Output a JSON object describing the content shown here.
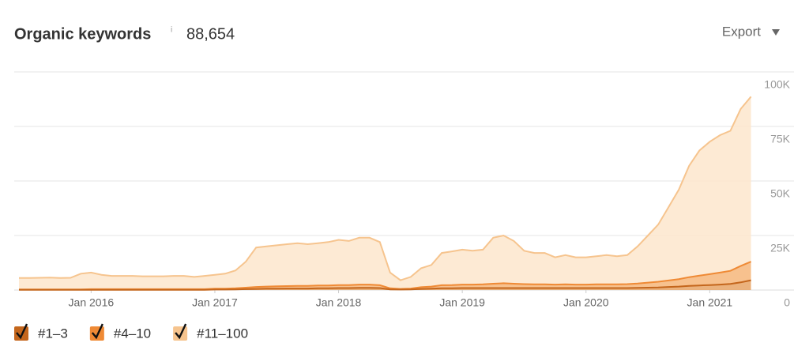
{
  "header": {
    "title": "Organic keywords",
    "info": "i",
    "total": "88,654",
    "export": "Export"
  },
  "chart_data": {
    "type": "area",
    "stacked": true,
    "x": [
      "2015-06",
      "2015-07",
      "2015-08",
      "2015-09",
      "2015-10",
      "2015-11",
      "2015-12",
      "2016-01",
      "2016-02",
      "2016-03",
      "2016-04",
      "2016-05",
      "2016-06",
      "2016-07",
      "2016-08",
      "2016-09",
      "2016-10",
      "2016-11",
      "2016-12",
      "2017-01",
      "2017-02",
      "2017-03",
      "2017-04",
      "2017-05",
      "2017-06",
      "2017-07",
      "2017-08",
      "2017-09",
      "2017-10",
      "2017-11",
      "2017-12",
      "2018-01",
      "2018-02",
      "2018-03",
      "2018-04",
      "2018-05",
      "2018-06",
      "2018-07",
      "2018-08",
      "2018-09",
      "2018-10",
      "2018-11",
      "2018-12",
      "2019-01",
      "2019-02",
      "2019-03",
      "2019-04",
      "2019-05",
      "2019-06",
      "2019-07",
      "2019-08",
      "2019-09",
      "2019-10",
      "2019-11",
      "2019-12",
      "2020-01",
      "2020-02",
      "2020-03",
      "2020-04",
      "2020-05",
      "2020-06",
      "2020-07",
      "2020-08",
      "2020-09",
      "2020-10",
      "2020-11",
      "2020-12",
      "2021-01",
      "2021-02",
      "2021-03",
      "2021-04",
      "2021-05"
    ],
    "series": [
      {
        "name": "#1–3",
        "color": "#c4661c",
        "fill": "#e8a566",
        "values": [
          100,
          100,
          100,
          100,
          100,
          100,
          100,
          100,
          100,
          100,
          100,
          100,
          100,
          100,
          100,
          100,
          100,
          100,
          100,
          200,
          200,
          300,
          400,
          500,
          600,
          600,
          700,
          700,
          700,
          800,
          800,
          900,
          900,
          1000,
          1000,
          900,
          300,
          200,
          300,
          500,
          600,
          800,
          800,
          900,
          900,
          900,
          900,
          900,
          900,
          900,
          900,
          900,
          900,
          900,
          900,
          900,
          900,
          900,
          900,
          900,
          1000,
          1100,
          1200,
          1400,
          1600,
          1900,
          2100,
          2300,
          2500,
          2800,
          3500,
          4500
        ]
      },
      {
        "name": "#4–10",
        "color": "#ef8a35",
        "fill": "#f6b67a",
        "values": [
          200,
          200,
          200,
          200,
          200,
          200,
          200,
          300,
          300,
          300,
          300,
          300,
          300,
          300,
          300,
          300,
          300,
          300,
          300,
          400,
          400,
          500,
          700,
          900,
          1000,
          1100,
          1100,
          1200,
          1200,
          1300,
          1300,
          1400,
          1400,
          1500,
          1500,
          1300,
          500,
          300,
          400,
          800,
          1000,
          1400,
          1500,
          1600,
          1600,
          1700,
          2000,
          2200,
          2000,
          1800,
          1700,
          1700,
          1600,
          1700,
          1600,
          1600,
          1700,
          1700,
          1700,
          1800,
          2000,
          2300,
          2600,
          3000,
          3400,
          4000,
          4500,
          5000,
          5500,
          6000,
          7500,
          8500
        ]
      },
      {
        "name": "#11–100",
        "color": "#f6c48e",
        "fill": "#fde6cc",
        "values": [
          5200,
          5200,
          5300,
          5400,
          5200,
          5300,
          7200,
          7600,
          6600,
          6100,
          6100,
          6100,
          5900,
          5900,
          5900,
          6100,
          6100,
          5600,
          6100,
          6400,
          6900,
          8200,
          11900,
          18100,
          18400,
          18800,
          19200,
          19600,
          19100,
          19400,
          19900,
          20700,
          20200,
          21500,
          21500,
          19800,
          7200,
          4000,
          5300,
          8700,
          9900,
          14800,
          15400,
          16000,
          15500,
          15900,
          21100,
          21900,
          19600,
          15300,
          14400,
          14400,
          12500,
          13400,
          12500,
          12500,
          12900,
          13400,
          12900,
          13300,
          17000,
          21600,
          26200,
          33600,
          41000,
          51100,
          57400,
          60700,
          63000,
          64200,
          72000,
          75654
        ]
      }
    ],
    "xticks": [
      {
        "value": "2016-01",
        "label": "Jan 2016"
      },
      {
        "value": "2017-01",
        "label": "Jan 2017"
      },
      {
        "value": "2018-01",
        "label": "Jan 2018"
      },
      {
        "value": "2019-01",
        "label": "Jan 2019"
      },
      {
        "value": "2020-01",
        "label": "Jan 2020"
      },
      {
        "value": "2021-01",
        "label": "Jan 2021"
      }
    ],
    "ylim": [
      0,
      100000
    ],
    "yticks": [
      0,
      {
        "value": 25000,
        "label": "25K"
      },
      {
        "value": 50000,
        "label": "50K"
      },
      {
        "value": 75000,
        "label": "75K"
      },
      {
        "value": 100000,
        "label": "100K"
      }
    ],
    "grid": true
  }
}
